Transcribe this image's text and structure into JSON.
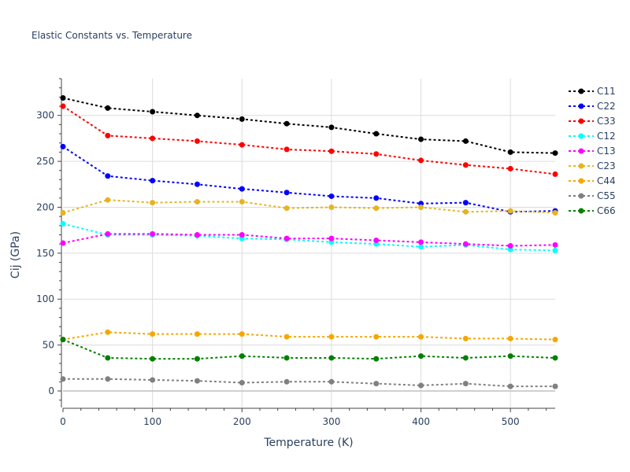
{
  "chart_data": {
    "type": "line",
    "title": "Elastic Constants vs. Temperature",
    "xlabel": "Temperature (K)",
    "ylabel": "Cij (GPa)",
    "xlim": [
      0,
      550
    ],
    "ylim": [
      -18,
      340
    ],
    "xticks": [
      0,
      100,
      200,
      300,
      400,
      500
    ],
    "yticks": [
      0,
      50,
      100,
      150,
      200,
      250,
      300
    ],
    "grid": true,
    "legend_position": "right",
    "x": [
      0,
      50,
      100,
      150,
      200,
      250,
      300,
      350,
      400,
      450,
      500,
      550
    ],
    "series": [
      {
        "name": "C11",
        "color": "#000000",
        "values": [
          319,
          308,
          304,
          300,
          296,
          291,
          287,
          280,
          274,
          272,
          260,
          259
        ]
      },
      {
        "name": "C22",
        "color": "#0000ff",
        "values": [
          266,
          234,
          229,
          225,
          220,
          216,
          212,
          210,
          204,
          205,
          195,
          196
        ]
      },
      {
        "name": "C33",
        "color": "#ff0000",
        "values": [
          310,
          278,
          275,
          272,
          268,
          263,
          261,
          258,
          251,
          246,
          242,
          236
        ]
      },
      {
        "name": "C12",
        "color": "#00ffff",
        "values": [
          182,
          170,
          170,
          169,
          166,
          165,
          162,
          160,
          157,
          159,
          154,
          153
        ]
      },
      {
        "name": "C13",
        "color": "#ff00ff",
        "values": [
          161,
          171,
          171,
          170,
          170,
          166,
          166,
          164,
          162,
          160,
          158,
          159
        ]
      },
      {
        "name": "C23",
        "color": "#e6b422",
        "values": [
          194,
          208,
          205,
          206,
          206,
          199,
          200,
          199,
          200,
          195,
          196,
          194
        ]
      },
      {
        "name": "C44",
        "color": "#f5a700",
        "values": [
          56,
          64,
          62,
          62,
          62,
          59,
          59,
          59,
          59,
          57,
          57,
          56
        ]
      },
      {
        "name": "C55",
        "color": "#808080",
        "values": [
          13,
          13,
          12,
          11,
          9,
          10,
          10,
          8,
          6,
          8,
          5,
          5
        ]
      },
      {
        "name": "C66",
        "color": "#008000",
        "values": [
          56,
          36,
          35,
          35,
          38,
          36,
          36,
          35,
          38,
          36,
          38,
          36
        ]
      }
    ]
  }
}
